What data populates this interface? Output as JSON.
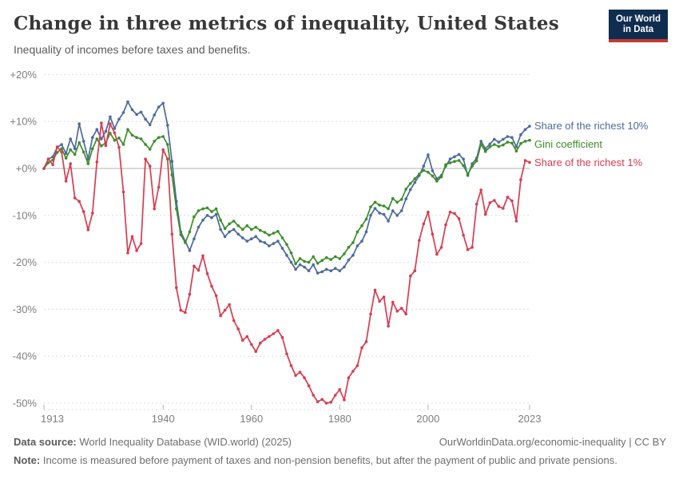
{
  "header": {
    "title": "Change in three metrics of inequality, United States",
    "subtitle": "Inequality of incomes before taxes and benefits.",
    "logo_line1": "Our World",
    "logo_line2": "in Data"
  },
  "chart_data": {
    "type": "line",
    "title": "Change in three metrics of inequality, United States",
    "subtitle": "Inequality of incomes before taxes and benefits.",
    "x_range": {
      "start": 1913,
      "end": 2023,
      "step": 1
    },
    "xlabel": "",
    "ylabel": "",
    "ylim": [
      -50,
      20
    ],
    "grid": "horizontal-dashed",
    "legend_position": "right-of-line-ends",
    "unit": "%",
    "y_ticks": [
      {
        "value": 20,
        "label": "+20%"
      },
      {
        "value": 10,
        "label": "+10%"
      },
      {
        "value": 0,
        "label": "+0%"
      },
      {
        "value": -10,
        "label": "-10%"
      },
      {
        "value": -20,
        "label": "-20%"
      },
      {
        "value": -30,
        "label": "-30%"
      },
      {
        "value": -40,
        "label": "-40%"
      },
      {
        "value": -50,
        "label": "-50%"
      }
    ],
    "x_ticks": [
      {
        "value": 1913,
        "label": "1913"
      },
      {
        "value": 1940,
        "label": "1940"
      },
      {
        "value": 1960,
        "label": "1960"
      },
      {
        "value": 1980,
        "label": "1980"
      },
      {
        "value": 2000,
        "label": "2000"
      },
      {
        "value": 2023,
        "label": "2023"
      }
    ],
    "series": [
      {
        "name": "Share of the richest 10%",
        "color": "#4c6a9c",
        "values": [
          0,
          2,
          2.5,
          4.5,
          5.1,
          3.2,
          6.3,
          4.2,
          9.5,
          5.8,
          2,
          6.6,
          8.3,
          6.3,
          7.9,
          11,
          8.5,
          10.5,
          11.9,
          14.2,
          12.5,
          11.5,
          12,
          10.5,
          9.3,
          11.4,
          13.1,
          13.9,
          9.2,
          1.5,
          -7,
          -13.5,
          -15.5,
          -17.5,
          -15,
          -12.5,
          -11,
          -10,
          -10.5,
          -9.8,
          -13,
          -14.5,
          -13.5,
          -13,
          -14,
          -14.8,
          -15.5,
          -15,
          -14.5,
          -15.5,
          -15.8,
          -16.5,
          -16,
          -15.5,
          -17,
          -18.5,
          -20,
          -21.5,
          -20.5,
          -21,
          -21.8,
          -20.5,
          -22.3,
          -22,
          -21.5,
          -21.8,
          -21.3,
          -21.8,
          -21,
          -19.5,
          -18.5,
          -16.5,
          -15.5,
          -13.5,
          -10,
          -8.5,
          -9.5,
          -9.8,
          -11.2,
          -9,
          -10,
          -9,
          -6.5,
          -4.5,
          -3,
          -1.5,
          0.5,
          2.9,
          -0.5,
          -2.2,
          -1.5,
          0.5,
          2,
          2.5,
          3,
          2,
          -1.5,
          1,
          2.2,
          5.8,
          4.2,
          5.2,
          6.2,
          5.6,
          6.2,
          6.8,
          6.6,
          4.6,
          7.2,
          8.3,
          9
        ]
      },
      {
        "name": "Gini coefficient",
        "color": "#3c8e28",
        "values": [
          0,
          1.2,
          1.8,
          3.4,
          4.2,
          2.2,
          4,
          3,
          5.5,
          3.5,
          1,
          4.2,
          6.3,
          4.8,
          5.5,
          7.5,
          6,
          6.5,
          5.1,
          8.3,
          7.1,
          6.6,
          6.3,
          5.1,
          4.1,
          5.8,
          6.6,
          6.8,
          5.1,
          -1.4,
          -8.6,
          -14.1,
          -15.8,
          -13.5,
          -10.3,
          -9,
          -8.6,
          -8.4,
          -9.2,
          -8.6,
          -11,
          -12.8,
          -11.8,
          -11.2,
          -12.2,
          -13,
          -12.2,
          -13,
          -12.5,
          -13.2,
          -13.6,
          -14.2,
          -13.8,
          -13.4,
          -14.8,
          -16.2,
          -18,
          -20.3,
          -19.2,
          -19.8,
          -20,
          -18.8,
          -20.2,
          -19.6,
          -19,
          -19.4,
          -18.8,
          -19.2,
          -18.2,
          -16.8,
          -15.8,
          -13.5,
          -12.2,
          -10.8,
          -8.2,
          -7.2,
          -7.8,
          -8,
          -8.6,
          -6.4,
          -7.2,
          -6.6,
          -4.4,
          -3.2,
          -2.2,
          -1.2,
          -0.4,
          -0.8,
          -1.6,
          -2.7,
          -1.8,
          0.8,
          1.2,
          1.5,
          1.7,
          0.6,
          -1.2,
          0.5,
          1.6,
          5.2,
          3.6,
          4.6,
          5.1,
          4.7,
          5,
          5.6,
          5.4,
          3.7,
          5.3,
          5.8,
          6
        ]
      },
      {
        "name": "Share of the richest 1%",
        "color": "#d73c50",
        "values": [
          0,
          2,
          0.8,
          4.6,
          3.5,
          -2.7,
          1,
          -6.3,
          -7,
          -9.2,
          -13.1,
          -9.5,
          1.4,
          9.7,
          4.9,
          9.5,
          7.6,
          4.5,
          -5,
          -18,
          -14.5,
          -17.5,
          -16,
          2,
          0.5,
          -8.6,
          -4,
          4,
          2,
          -14,
          -25.4,
          -30.2,
          -30.7,
          -26.8,
          -20.8,
          -21.7,
          -18.6,
          -22.4,
          -25.1,
          -27.1,
          -31.4,
          -30.2,
          -29,
          -32.4,
          -34.2,
          -36.6,
          -35.8,
          -37.5,
          -39,
          -37.2,
          -36.4,
          -35.8,
          -35.2,
          -34.5,
          -36,
          -39.5,
          -42,
          -44.1,
          -43.4,
          -44.6,
          -46.3,
          -48.3,
          -49.7,
          -49.2,
          -50,
          -49.8,
          -48.3,
          -47.1,
          -49.3,
          -44.6,
          -43.2,
          -42,
          -38.2,
          -36.9,
          -31,
          -25.9,
          -28.3,
          -27.4,
          -33.6,
          -28.5,
          -30.4,
          -29.8,
          -31,
          -22.9,
          -21.8,
          -15.3,
          -11.8,
          -9.3,
          -14,
          -18.3,
          -16.8,
          -12,
          -9.3,
          -9.6,
          -10.7,
          -14.2,
          -17.3,
          -16.8,
          -7.6,
          -4.6,
          -9.8,
          -7.3,
          -6.8,
          -8.1,
          -8.5,
          -6.1,
          -6.9,
          -11.2,
          -2.4,
          1.7,
          1.3
        ]
      }
    ]
  },
  "footer": {
    "datasource_label": "Data source:",
    "datasource_text": " World Inequality Database (WID.world) (2025)",
    "citation": "OurWorldinData.org/economic-inequality | CC BY",
    "note_label": "Note:",
    "note_text": " Income is measured before payment of taxes and non-pension benefits, but after the payment of public and private pensions."
  },
  "colors": {
    "grid": "#dcdcdc",
    "zero_line": "#b0b0b0",
    "axis_text": "#7d7d7d",
    "logo_bg": "#0f2e4f",
    "logo_bar": "#c4392f"
  }
}
